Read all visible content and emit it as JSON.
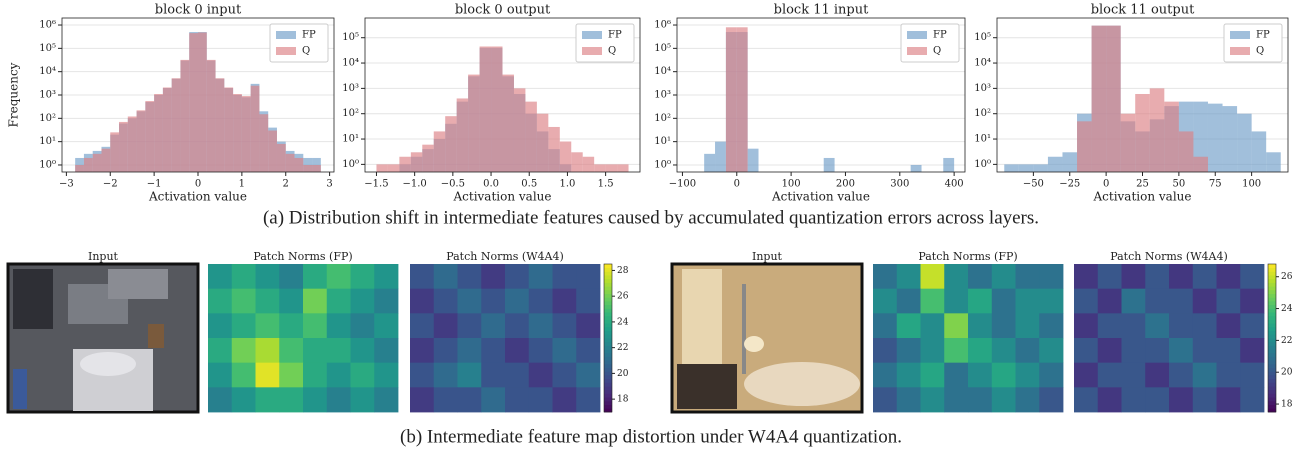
{
  "chart_data": [
    {
      "type": "histogram",
      "title": "block 0 input",
      "xlabel": "Activation value",
      "ylabel": "Frequency",
      "log_y": true,
      "grid": true,
      "legend": "upper right",
      "xlim": [
        -3.1,
        3.1
      ],
      "xticks": [
        {
          "value": -3,
          "label": "−3"
        },
        {
          "value": -2,
          "label": "−2"
        },
        {
          "value": -1,
          "label": "−1"
        },
        0,
        1,
        2,
        3
      ],
      "ylim": [
        0.5,
        2000000
      ],
      "yticks": [
        {
          "value": 1,
          "label": "10⁰"
        },
        {
          "value": 10,
          "label": "10¹"
        },
        {
          "value": 100,
          "label": "10²"
        },
        {
          "value": 1000,
          "label": "10³"
        },
        {
          "value": 10000,
          "label": "10⁴"
        },
        {
          "value": 100000,
          "label": "10⁵"
        },
        {
          "value": 1000000,
          "label": "10⁶"
        }
      ],
      "bins": [
        -2.8,
        -2.6,
        -2.4,
        -2.2,
        -2.0,
        -1.8,
        -1.6,
        -1.4,
        -1.2,
        -1.0,
        -0.8,
        -0.6,
        -0.4,
        -0.2,
        0.0,
        0.2,
        0.4,
        0.6,
        0.8,
        1.0,
        1.2,
        1.4,
        1.6,
        1.8,
        2.0,
        2.2,
        2.4,
        2.6,
        2.8
      ],
      "series": [
        {
          "name": "FP",
          "color": "#6f9dc8",
          "values": [
            2,
            3,
            4,
            6,
            20,
            60,
            100,
            200,
            500,
            1000,
            2000,
            5000,
            30000,
            500000,
            500000,
            30000,
            5000,
            2000,
            1000,
            800,
            3000,
            200,
            40,
            10,
            4,
            3,
            2,
            2
          ]
        },
        {
          "name": "Q",
          "color": "#dc7f84",
          "values": [
            1,
            2,
            3,
            5,
            25,
            70,
            120,
            220,
            550,
            1100,
            2100,
            5200,
            32000,
            450000,
            480000,
            32000,
            5200,
            2100,
            1100,
            900,
            2500,
            150,
            30,
            8,
            3,
            2,
            1,
            1
          ]
        }
      ]
    },
    {
      "type": "histogram",
      "title": "block 0 output",
      "xlabel": "Activation value",
      "log_y": true,
      "grid": true,
      "legend": "upper right",
      "xlim": [
        -1.65,
        1.95
      ],
      "xticks": [
        {
          "value": -1.5,
          "label": "−1.5"
        },
        {
          "value": -1,
          "label": "−1.0"
        },
        {
          "value": -0.5,
          "label": "−0.5"
        },
        {
          "value": 0,
          "label": "0.0"
        },
        0.5,
        {
          "value": 1,
          "label": "1.0"
        },
        1.5
      ],
      "ylim": [
        0.5,
        600000
      ],
      "yticks": [
        {
          "value": 1,
          "label": "10⁰"
        },
        {
          "value": 10,
          "label": "10¹"
        },
        {
          "value": 100,
          "label": "10²"
        },
        {
          "value": 1000,
          "label": "10³"
        },
        {
          "value": 10000,
          "label": "10⁴"
        },
        {
          "value": 100000,
          "label": "10⁵"
        }
      ],
      "bins": [
        -1.5,
        -1.35,
        -1.2,
        -1.05,
        -0.9,
        -0.75,
        -0.6,
        -0.45,
        -0.3,
        -0.15,
        0,
        0.15,
        0.3,
        0.45,
        0.6,
        0.75,
        0.9,
        1.05,
        1.2,
        1.35,
        1.5,
        1.65,
        1.8
      ],
      "series": [
        {
          "name": "FP",
          "color": "#6f9dc8",
          "values": [
            0,
            0,
            1,
            2,
            4,
            10,
            40,
            300,
            3000,
            40000,
            40000,
            3000,
            600,
            100,
            20,
            4,
            1,
            0,
            0,
            0,
            0,
            0
          ]
        },
        {
          "name": "Q",
          "color": "#dc7f84",
          "values": [
            1,
            1,
            2,
            3,
            6,
            20,
            80,
            400,
            3500,
            45000,
            45000,
            3500,
            1000,
            300,
            100,
            30,
            8,
            3,
            2,
            1,
            1,
            1
          ]
        }
      ]
    },
    {
      "type": "histogram",
      "title": "block 11 input",
      "xlabel": "Activation value",
      "log_y": true,
      "grid": true,
      "legend": "upper right",
      "xlim": [
        -110,
        420
      ],
      "xticks": [
        {
          "value": -100,
          "label": "−100"
        },
        0,
        100,
        200,
        300,
        400
      ],
      "ylim": [
        0.5,
        2000000
      ],
      "yticks": [
        {
          "value": 1,
          "label": "10⁰"
        },
        {
          "value": 10,
          "label": "10¹"
        },
        {
          "value": 100,
          "label": "10²"
        },
        {
          "value": 1000,
          "label": "10³"
        },
        {
          "value": 10000,
          "label": "10⁴"
        },
        {
          "value": 100000,
          "label": "10⁵"
        },
        {
          "value": 1000000,
          "label": "10⁶"
        }
      ],
      "bins": [
        -100,
        -80,
        -60,
        -40,
        -20,
        0,
        20,
        40,
        60,
        80,
        100,
        120,
        140,
        160,
        180,
        200,
        220,
        240,
        260,
        280,
        300,
        320,
        340,
        360,
        380,
        400,
        420
      ],
      "series": [
        {
          "name": "FP",
          "color": "#6f9dc8",
          "values": [
            0,
            0,
            3,
            10,
            500000,
            500000,
            5,
            0,
            0,
            0,
            0,
            0,
            0,
            2,
            0,
            0,
            0,
            0,
            0,
            0,
            0,
            1,
            0,
            0,
            2,
            0
          ]
        },
        {
          "name": "Q",
          "color": "#dc7f84",
          "values": [
            0,
            0,
            0,
            0,
            800000,
            800000,
            0,
            0,
            0,
            0,
            0,
            0,
            0,
            0,
            0,
            0,
            0,
            0,
            0,
            0,
            0,
            0,
            0,
            0,
            0,
            0
          ]
        }
      ]
    },
    {
      "type": "histogram",
      "title": "block 11 output",
      "xlabel": "Activation value",
      "log_y": true,
      "grid": true,
      "legend": "upper right",
      "xlim": [
        -75,
        125
      ],
      "xticks": [
        {
          "value": -50,
          "label": "−50"
        },
        {
          "value": -25,
          "label": "−25"
        },
        0,
        25,
        50,
        75,
        100
      ],
      "ylim": [
        0.5,
        600000
      ],
      "yticks": [
        {
          "value": 1,
          "label": "10⁰"
        },
        {
          "value": 10,
          "label": "10¹"
        },
        {
          "value": 100,
          "label": "10²"
        },
        {
          "value": 1000,
          "label": "10³"
        },
        {
          "value": 10000,
          "label": "10⁴"
        },
        {
          "value": 100000,
          "label": "10⁵"
        }
      ],
      "bins": [
        -70,
        -60,
        -50,
        -40,
        -30,
        -20,
        -10,
        0,
        10,
        20,
        30,
        40,
        50,
        60,
        70,
        80,
        90,
        100,
        110,
        120
      ],
      "series": [
        {
          "name": "FP",
          "color": "#6f9dc8",
          "values": [
            1,
            1,
            1,
            2,
            3,
            100,
            300000,
            300000,
            50,
            20,
            60,
            200,
            300,
            300,
            250,
            200,
            100,
            20,
            3
          ]
        },
        {
          "name": "Q",
          "color": "#dc7f84",
          "values": [
            0,
            0,
            0,
            0,
            0,
            50,
            300000,
            300000,
            100,
            600,
            1000,
            300,
            20,
            2,
            0,
            0,
            0,
            0,
            0
          ]
        }
      ]
    },
    {
      "type": "heatmap",
      "colormap": "viridis",
      "zlim": [
        17,
        28.5
      ],
      "zticks": [
        18,
        20,
        22,
        24,
        26,
        28
      ],
      "panels": [
        {
          "title": "Input"
        },
        {
          "title": "Patch Norms (FP)",
          "values": [
            [
              23,
              24,
              23,
              22,
              24,
              25,
              24,
              23
            ],
            [
              24,
              25,
              24,
              23,
              26,
              24,
              23,
              22
            ],
            [
              23,
              24,
              25,
              24,
              25,
              23,
              22,
              23
            ],
            [
              24,
              26,
              27,
              25,
              24,
              24,
              23,
              22
            ],
            [
              23,
              25,
              28,
              26,
              24,
              23,
              24,
              23
            ],
            [
              22,
              23,
              24,
              24,
              23,
              22,
              23,
              22
            ]
          ]
        },
        {
          "title": "Patch Norms (W4A4)",
          "values": [
            [
              20,
              21,
              20,
              19,
              20,
              21,
              20,
              20
            ],
            [
              19,
              20,
              21,
              20,
              21,
              20,
              19,
              20
            ],
            [
              20,
              19,
              20,
              21,
              20,
              21,
              20,
              19
            ],
            [
              19,
              20,
              21,
              20,
              19,
              20,
              21,
              20
            ],
            [
              20,
              21,
              22,
              20,
              20,
              19,
              20,
              21
            ],
            [
              19,
              20,
              20,
              21,
              20,
              20,
              19,
              20
            ]
          ]
        }
      ]
    },
    {
      "type": "heatmap",
      "colormap": "viridis",
      "zlim": [
        17.5,
        26.8
      ],
      "zticks": [
        18,
        20,
        22,
        24,
        26
      ],
      "panels": [
        {
          "title": "Input"
        },
        {
          "title": "Patch Norms (FP)",
          "values": [
            [
              21,
              22,
              26,
              22,
              21,
              22,
              21,
              21
            ],
            [
              22,
              21,
              24,
              22,
              23,
              21,
              22,
              22
            ],
            [
              21,
              23,
              22,
              25,
              22,
              21,
              22,
              21
            ],
            [
              20,
              21,
              22,
              24,
              23,
              22,
              21,
              22
            ],
            [
              21,
              22,
              23,
              21,
              22,
              23,
              22,
              21
            ],
            [
              20,
              21,
              22,
              21,
              21,
              22,
              21,
              20
            ]
          ]
        },
        {
          "title": "Patch Norms (W4A4)",
          "values": [
            [
              19,
              20,
              19,
              20,
              19,
              20,
              19,
              20
            ],
            [
              20,
              19,
              21,
              20,
              20,
              19,
              20,
              19
            ],
            [
              19,
              20,
              20,
              21,
              20,
              20,
              19,
              20
            ],
            [
              20,
              19,
              20,
              20,
              21,
              20,
              20,
              19
            ],
            [
              19,
              20,
              20,
              19,
              20,
              21,
              20,
              20
            ],
            [
              20,
              19,
              20,
              20,
              19,
              20,
              19,
              20
            ]
          ]
        }
      ]
    }
  ],
  "caption_a": "(a) Distribution shift in intermediate features caused by accumulated quantization errors across layers.",
  "caption_b": "(b) Intermediate feature map distortion under W4A4 quantization."
}
